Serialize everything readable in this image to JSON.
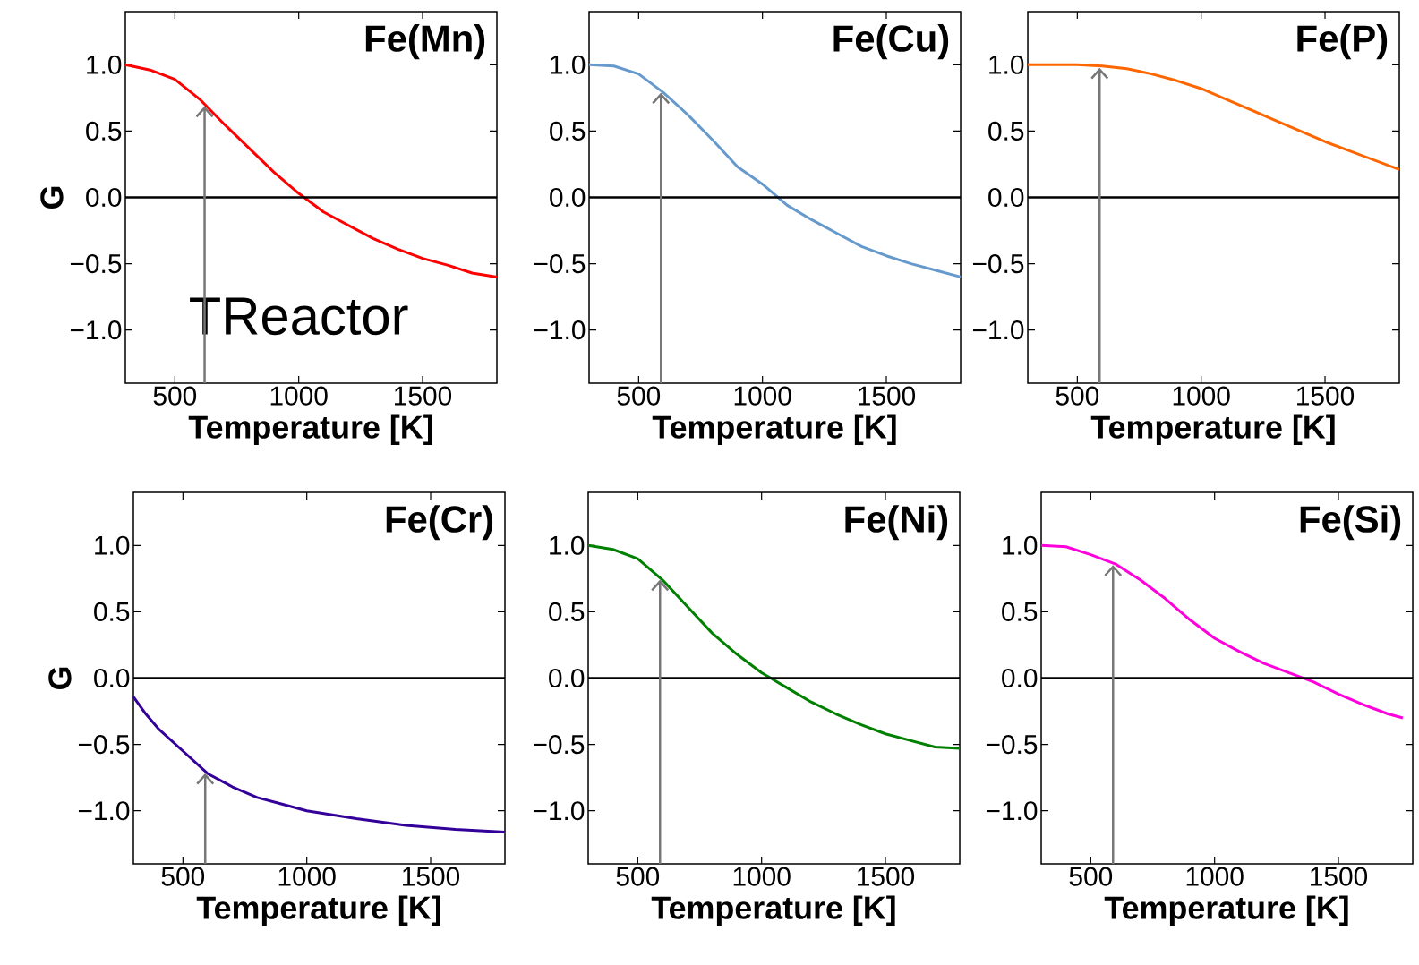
{
  "chart_data": [
    {
      "type": "line",
      "title": "Fe(Mn)",
      "xlabel": "Temperature [K]",
      "ylabel": "G",
      "xlim": [
        300,
        1800
      ],
      "ylim": [
        -1.4,
        1.4
      ],
      "xticks": [
        500,
        1000,
        1500
      ],
      "yticks": [
        {
          "value": -1,
          "label": "−1.0"
        },
        {
          "value": -0.5,
          "label": "−0.5"
        },
        {
          "value": 0,
          "label": "0.0"
        },
        {
          "value": 0.5,
          "label": "0.5"
        },
        {
          "value": 1,
          "label": "1.0"
        }
      ],
      "x": [
        300,
        400,
        500,
        600,
        700,
        800,
        900,
        1000,
        1100,
        1200,
        1300,
        1400,
        1500,
        1600,
        1700,
        1800
      ],
      "series": [
        {
          "color": "#ff0000",
          "values": [
            1.0,
            0.96,
            0.89,
            0.74,
            0.55,
            0.37,
            0.19,
            0.03,
            -0.11,
            -0.21,
            -0.31,
            -0.39,
            -0.46,
            -0.51,
            -0.57,
            -0.6
          ]
        }
      ],
      "ref_lines": [
        {
          "axis": "y",
          "value": 0,
          "color": "#000000"
        },
        {
          "axis": "x",
          "value": 620,
          "label": "TReactor",
          "color": "#777777"
        }
      ]
    },
    {
      "type": "line",
      "title": "Fe(Cu)",
      "xlabel": "Temperature [K]",
      "xlim": [
        300,
        1800
      ],
      "ylim": [
        -1.4,
        1.4
      ],
      "xticks": [
        500,
        1000,
        1500
      ],
      "yticks": [
        {
          "value": -1,
          "label": "−1.0"
        },
        {
          "value": -0.5,
          "label": "−0.5"
        },
        {
          "value": 0,
          "label": "0.0"
        },
        {
          "value": 0.5,
          "label": "0.5"
        },
        {
          "value": 1,
          "label": "1.0"
        }
      ],
      "x": [
        300,
        400,
        500,
        600,
        700,
        800,
        900,
        1000,
        1100,
        1200,
        1300,
        1400,
        1500,
        1600,
        1700,
        1800
      ],
      "series": [
        {
          "color": "#6699cc",
          "values": [
            1.0,
            0.99,
            0.93,
            0.79,
            0.62,
            0.43,
            0.23,
            0.1,
            -0.06,
            -0.17,
            -0.27,
            -0.37,
            -0.44,
            -0.5,
            -0.55,
            -0.6
          ]
        }
      ],
      "ref_lines": [
        {
          "axis": "y",
          "value": 0,
          "color": "#000000"
        },
        {
          "axis": "x",
          "value": 590,
          "color": "#777777"
        }
      ]
    },
    {
      "type": "line",
      "title": "Fe(P)",
      "xlabel": "Temperature [K]",
      "xlim": [
        300,
        1800
      ],
      "ylim": [
        -1.4,
        1.4
      ],
      "xticks": [
        500,
        1000,
        1500
      ],
      "yticks": [
        {
          "value": -1,
          "label": "−1.0"
        },
        {
          "value": -0.5,
          "label": "−0.5"
        },
        {
          "value": 0,
          "label": "0.0"
        },
        {
          "value": 0.5,
          "label": "0.5"
        },
        {
          "value": 1,
          "label": "1.0"
        }
      ],
      "x": [
        300,
        500,
        600,
        700,
        800,
        900,
        1000,
        1100,
        1200,
        1300,
        1400,
        1500,
        1600,
        1700,
        1800
      ],
      "series": [
        {
          "color": "#ff6600",
          "values": [
            1.0,
            1.0,
            0.99,
            0.97,
            0.93,
            0.88,
            0.82,
            0.74,
            0.66,
            0.58,
            0.5,
            0.42,
            0.35,
            0.28,
            0.21
          ]
        }
      ],
      "ref_lines": [
        {
          "axis": "y",
          "value": 0,
          "color": "#000000"
        },
        {
          "axis": "x",
          "value": 590,
          "color": "#777777"
        }
      ]
    },
    {
      "type": "line",
      "title": "Fe(Cr)",
      "xlabel": "Temperature [K]",
      "ylabel": "G",
      "xlim": [
        300,
        1800
      ],
      "ylim": [
        -1.4,
        1.4
      ],
      "xticks": [
        500,
        1000,
        1500
      ],
      "yticks": [
        {
          "value": -1,
          "label": "−1.0"
        },
        {
          "value": -0.5,
          "label": "−0.5"
        },
        {
          "value": 0,
          "label": "0.0"
        },
        {
          "value": 0.5,
          "label": "0.5"
        },
        {
          "value": 1,
          "label": "1.0"
        }
      ],
      "x": [
        300,
        350,
        400,
        500,
        600,
        700,
        800,
        900,
        1000,
        1200,
        1400,
        1600,
        1800
      ],
      "series": [
        {
          "color": "#330099",
          "values": [
            -0.14,
            -0.27,
            -0.38,
            -0.55,
            -0.72,
            -0.82,
            -0.9,
            -0.95,
            -1.0,
            -1.06,
            -1.11,
            -1.14,
            -1.16
          ]
        }
      ],
      "ref_lines": [
        {
          "axis": "y",
          "value": 0,
          "color": "#000000"
        },
        {
          "axis": "x",
          "value": 590,
          "color": "#777777"
        }
      ]
    },
    {
      "type": "line",
      "title": "Fe(Ni)",
      "xlabel": "Temperature [K]",
      "xlim": [
        300,
        1800
      ],
      "ylim": [
        -1.4,
        1.4
      ],
      "xticks": [
        500,
        1000,
        1500
      ],
      "yticks": [
        {
          "value": -1,
          "label": "−1.0"
        },
        {
          "value": -0.5,
          "label": "−0.5"
        },
        {
          "value": 0,
          "label": "0.0"
        },
        {
          "value": 0.5,
          "label": "0.5"
        },
        {
          "value": 1,
          "label": "1.0"
        }
      ],
      "x": [
        300,
        400,
        500,
        600,
        700,
        800,
        900,
        1000,
        1100,
        1200,
        1300,
        1400,
        1500,
        1600,
        1700,
        1800
      ],
      "series": [
        {
          "color": "#008000",
          "values": [
            1.0,
            0.97,
            0.9,
            0.74,
            0.54,
            0.34,
            0.18,
            0.04,
            -0.07,
            -0.18,
            -0.27,
            -0.35,
            -0.42,
            -0.47,
            -0.52,
            -0.53
          ]
        }
      ],
      "ref_lines": [
        {
          "axis": "y",
          "value": 0,
          "color": "#000000"
        },
        {
          "axis": "x",
          "value": 590,
          "color": "#777777"
        }
      ]
    },
    {
      "type": "line",
      "title": "Fe(Si)",
      "xlabel": "Temperature [K]",
      "xlim": [
        300,
        1800
      ],
      "ylim": [
        -1.4,
        1.4
      ],
      "xticks": [
        500,
        1000,
        1500
      ],
      "yticks": [
        {
          "value": -1,
          "label": "−1.0"
        },
        {
          "value": -0.5,
          "label": "−0.5"
        },
        {
          "value": 0,
          "label": "0.0"
        },
        {
          "value": 0.5,
          "label": "0.5"
        },
        {
          "value": 1,
          "label": "1.0"
        }
      ],
      "x": [
        300,
        400,
        500,
        600,
        700,
        800,
        900,
        1000,
        1100,
        1200,
        1300,
        1400,
        1500,
        1600,
        1700,
        1760
      ],
      "series": [
        {
          "color": "#ff00dd",
          "values": [
            1.0,
            0.99,
            0.93,
            0.86,
            0.74,
            0.6,
            0.44,
            0.3,
            0.2,
            0.11,
            0.04,
            -0.03,
            -0.12,
            -0.2,
            -0.27,
            -0.3
          ]
        }
      ],
      "ref_lines": [
        {
          "axis": "y",
          "value": 0,
          "color": "#000000"
        },
        {
          "axis": "x",
          "value": 590,
          "color": "#777777"
        }
      ]
    }
  ]
}
